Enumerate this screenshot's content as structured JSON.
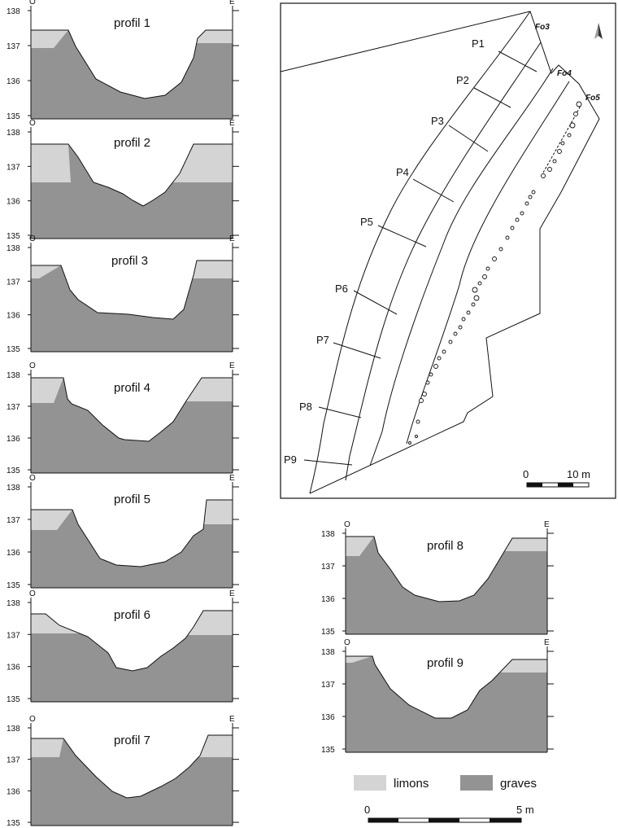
{
  "profiles": [
    {
      "title": "profil 1",
      "left": "O",
      "right": "E",
      "ticks": [
        "138",
        "137",
        "136",
        "135"
      ]
    },
    {
      "title": "profil 2",
      "left": "O",
      "right": "E",
      "ticks": [
        "138",
        "137",
        "136",
        "135"
      ]
    },
    {
      "title": "profil 3",
      "left": "O",
      "right": "E",
      "ticks": [
        "138",
        "137",
        "136",
        "135"
      ]
    },
    {
      "title": "profil 4",
      "left": "O",
      "right": "E",
      "ticks": [
        "138",
        "137",
        "136",
        "135"
      ]
    },
    {
      "title": "profil 5",
      "left": "O",
      "right": "E",
      "ticks": [
        "138",
        "137",
        "136",
        "135"
      ]
    },
    {
      "title": "profil 6",
      "left": "O",
      "right": "E",
      "ticks": [
        "138",
        "137",
        "136",
        "135"
      ]
    },
    {
      "title": "profil 7",
      "left": "O",
      "right": "E",
      "ticks": [
        "138",
        "137",
        "136",
        "135"
      ]
    },
    {
      "title": "profil 8",
      "left": "O",
      "right": "E",
      "ticks": [
        "138",
        "137",
        "136",
        "135"
      ]
    },
    {
      "title": "profil 9",
      "left": "O",
      "right": "E",
      "ticks": [
        "138",
        "137",
        "136",
        "135"
      ]
    }
  ],
  "map": {
    "profile_labels": [
      "P1",
      "P2",
      "P3",
      "P4",
      "P5",
      "P6",
      "P7",
      "P8",
      "P9"
    ],
    "features": [
      "Fo3",
      "Fo4",
      "Fo5"
    ],
    "scale": {
      "start": "0",
      "end": "10 m"
    }
  },
  "legend": {
    "limons": "limons",
    "graves": "graves",
    "limons_color": "#d4d4d4",
    "graves_color": "#939393"
  },
  "scale": {
    "start": "0",
    "end": "5 m"
  }
}
